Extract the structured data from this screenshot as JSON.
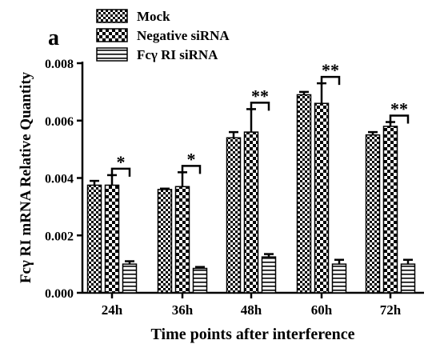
{
  "panel_label": "a",
  "chart_data": {
    "type": "bar",
    "title": "",
    "xlabel": "Time points after interference",
    "ylabel": "Fcγ RI mRNA Relative Quantity",
    "categories": [
      "24h",
      "36h",
      "48h",
      "60h",
      "72h"
    ],
    "ylim": [
      0,
      0.008
    ],
    "yticks": [
      "0.000",
      "0.002",
      "0.004",
      "0.006",
      "0.008"
    ],
    "legend_position": "top",
    "series": [
      {
        "name": "Mock",
        "pattern": "checker",
        "values": [
          0.00375,
          0.0036,
          0.0054,
          0.0069,
          0.0055
        ],
        "errors": [
          0.00015,
          3e-05,
          0.0002,
          0.0001,
          0.0001
        ]
      },
      {
        "name": "Negative siRNA",
        "pattern": "large-checker",
        "values": [
          0.00375,
          0.0037,
          0.0056,
          0.0066,
          0.0058
        ],
        "errors": [
          0.00035,
          0.0005,
          0.0008,
          0.0007,
          0.00015
        ]
      },
      {
        "name": "Fcγ RI siRNA",
        "pattern": "horizontal-stripes",
        "values": [
          0.001,
          0.00085,
          0.00125,
          0.001,
          0.001
        ],
        "errors": [
          0.0001,
          5e-05,
          0.0001,
          0.00015,
          0.00015
        ]
      }
    ],
    "significance": [
      "*",
      "*",
      "**",
      "**",
      "**"
    ],
    "grid": false
  }
}
